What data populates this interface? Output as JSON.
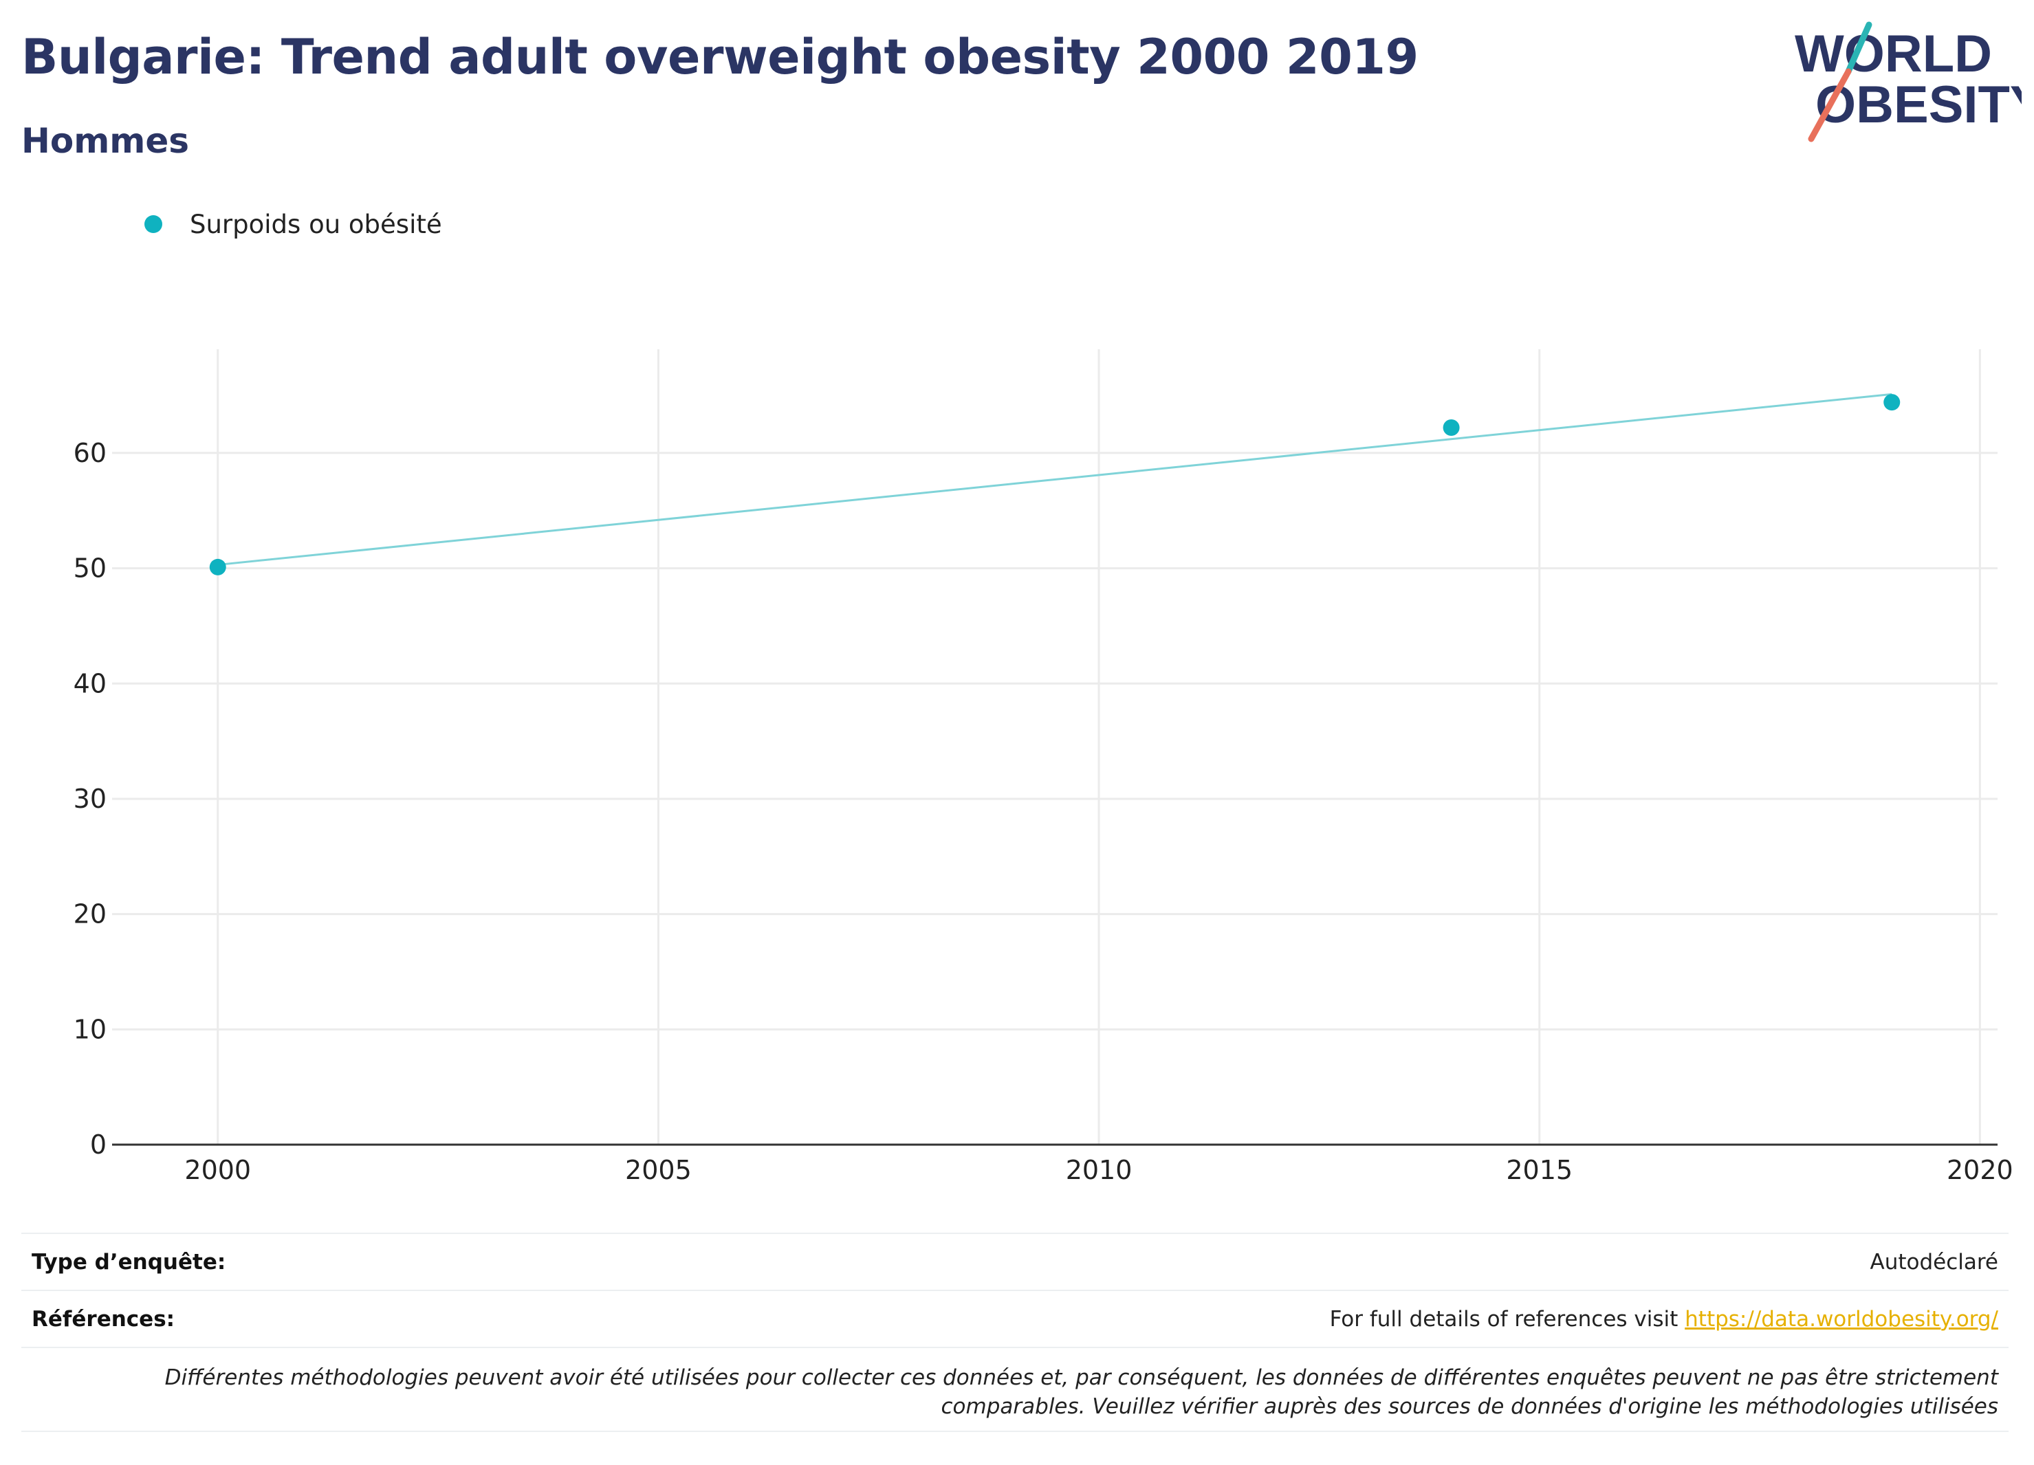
{
  "header": {
    "title": "Bulgarie: Trend adult overweight obesity 2000 2019",
    "subtitle": "Hommes"
  },
  "logo": {
    "line1": "WORLD",
    "line2": "OBESITY",
    "colors": {
      "text": "#2b3564",
      "slash_teal": "#2ab4b4",
      "slash_red": "#e8705b"
    }
  },
  "legend": {
    "label": "Surpoids ou obésité"
  },
  "chart_data": {
    "type": "scatter",
    "series": [
      {
        "name": "Surpoids ou obésité",
        "color": "#0fb2c0",
        "points": [
          {
            "x": 2000,
            "y": 50.1
          },
          {
            "x": 2014,
            "y": 62.2
          },
          {
            "x": 2019,
            "y": 64.4
          }
        ]
      }
    ],
    "trendline": {
      "color": "#7fd3d8",
      "x": [
        2000,
        2019
      ],
      "y": [
        50.3,
        65.1
      ]
    },
    "xlim": [
      1998.8,
      2020.2
    ],
    "ylim": [
      0,
      69
    ],
    "xticks": [
      2000,
      2005,
      2010,
      2015,
      2020
    ],
    "yticks": [
      0,
      10,
      20,
      30,
      40,
      50,
      60
    ],
    "xlabel": "",
    "ylabel": "",
    "grid": true,
    "legend_position": "top-left"
  },
  "footer": {
    "survey_type_label": "Type d’enquête:",
    "survey_type_value": "Autodéclaré",
    "references_label": "Références:",
    "references_text": "For full details of references visit ",
    "references_link": "https://data.worldobesity.org/",
    "note": "Différentes méthodologies peuvent avoir été utilisées pour collecter ces données et, par conséquent, les données de différentes enquêtes peuvent ne pas être strictement comparables. Veuillez vérifier auprès des sources de données d'origine les méthodologies utilisées"
  }
}
